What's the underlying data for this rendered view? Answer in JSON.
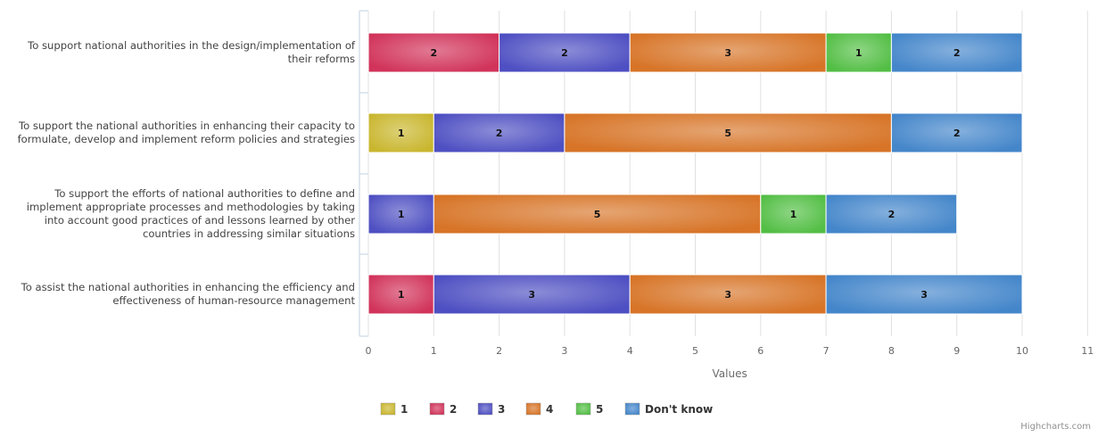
{
  "chart_data": {
    "type": "bar",
    "orientation": "horizontal",
    "stacked": true,
    "categories": [
      "To support national authorities in the design/implementation of their reforms",
      "To support the national authorities in enhancing their capacity to formulate, develop and implement reform policies and strategies",
      "To support the efforts of national authorities to define and implement appropriate processes and methodologies by taking into account good practices of and lessons learned by other countries in addressing similar situations",
      "To assist the national authorities in enhancing the efficiency and effectiveness of human-resource management"
    ],
    "category_lines": [
      [
        "To support national authorities in the design/implementation of",
        "their reforms"
      ],
      [
        "To support the national authorities in enhancing their capacity to",
        "formulate, develop and implement reform policies and strategies"
      ],
      [
        "To support the efforts of national authorities to define and",
        "implement appropriate processes and methodologies by taking",
        "into account good practices of and lessons learned by other",
        "countries in addressing similar situations"
      ],
      [
        "To assist the national authorities in enhancing the efficiency and",
        "effectiveness of human-resource management"
      ]
    ],
    "series": [
      {
        "name": "1",
        "color": "#C9B62E",
        "values": [
          0,
          1,
          0,
          0
        ]
      },
      {
        "name": "2",
        "color": "#D1335A",
        "values": [
          2,
          0,
          0,
          1
        ]
      },
      {
        "name": "3",
        "color": "#4E4FC2",
        "values": [
          2,
          2,
          1,
          3
        ]
      },
      {
        "name": "4",
        "color": "#D77427",
        "values": [
          3,
          5,
          5,
          3
        ]
      },
      {
        "name": "5",
        "color": "#52BE44",
        "values": [
          1,
          0,
          1,
          0
        ]
      },
      {
        "name": "Don't know",
        "color": "#4486CA",
        "values": [
          2,
          2,
          2,
          3
        ]
      }
    ],
    "xlabel": "Values",
    "xlim": [
      0,
      11
    ],
    "xticks": [
      "0",
      "1",
      "2",
      "3",
      "4",
      "5",
      "6",
      "7",
      "8",
      "9",
      "10",
      "11"
    ],
    "grid": true,
    "legend_position": "bottom-center",
    "data_labels": true
  },
  "credit": "Highcharts.com"
}
